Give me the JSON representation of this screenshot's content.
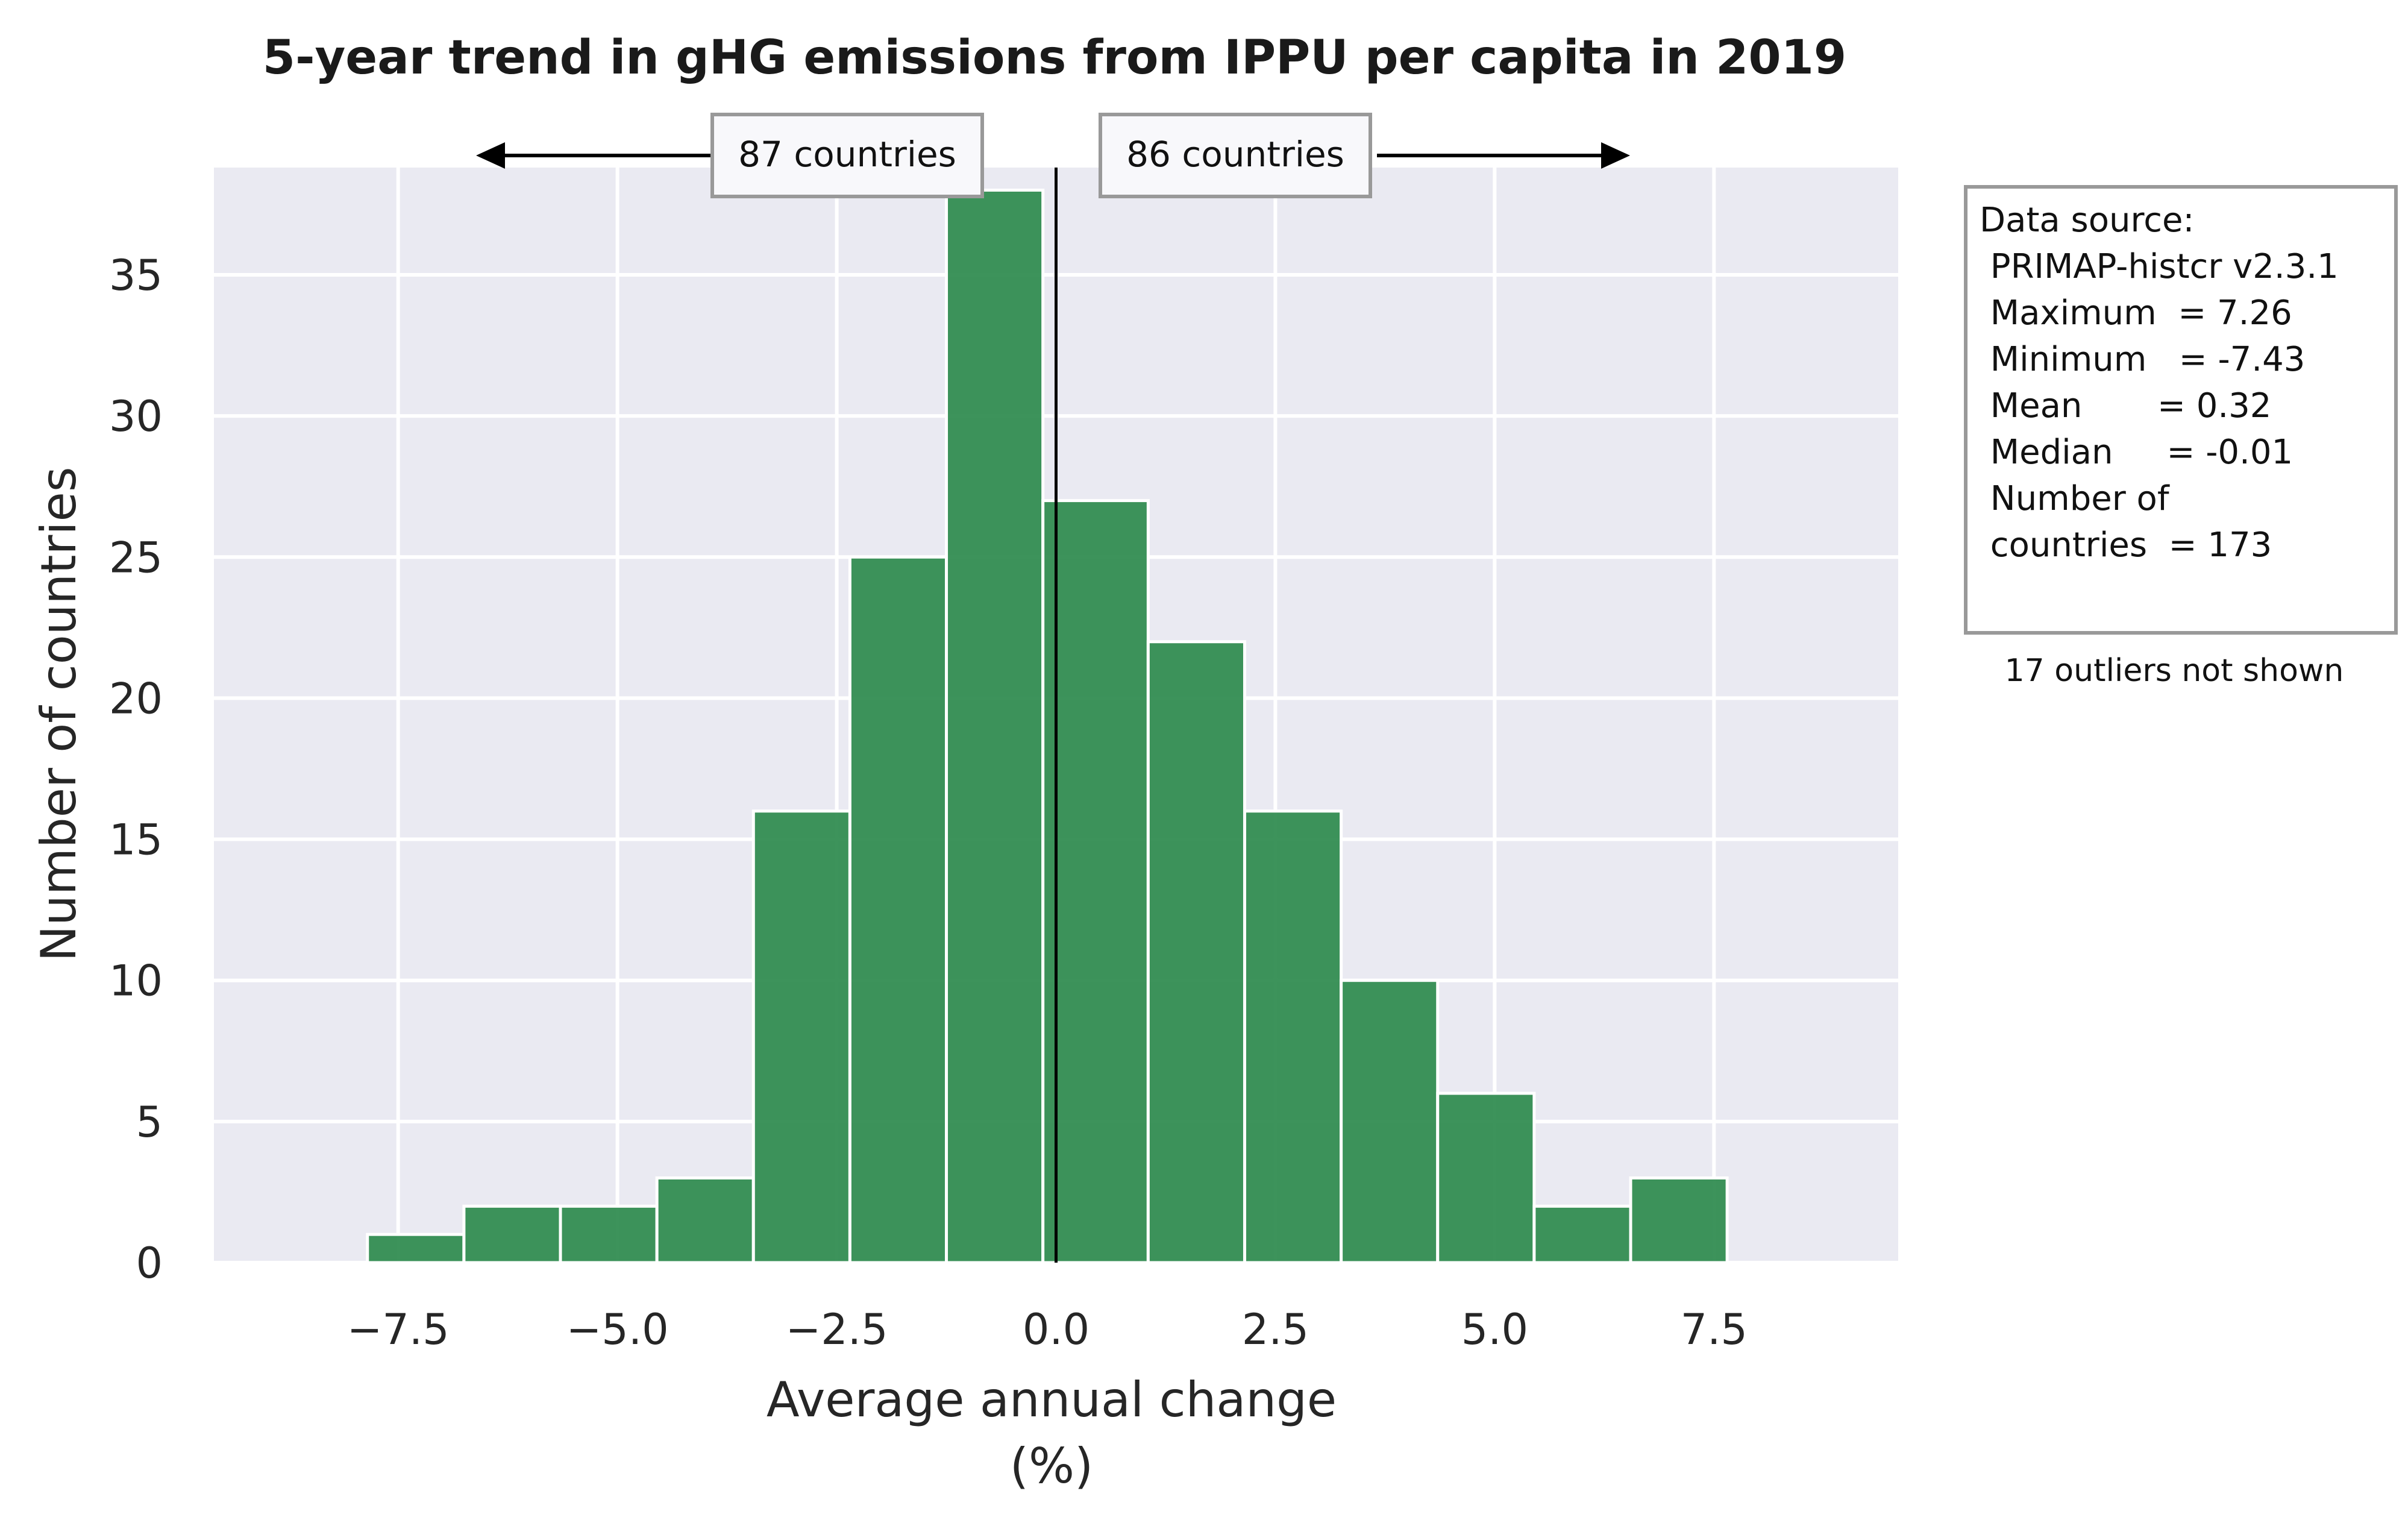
{
  "chart_data": {
    "type": "bar",
    "title": "5-year trend in gHG emissions from IPPU per capita in 2019",
    "xlabel_line1": "Average annual change",
    "xlabel_line2": "(%)",
    "ylabel": "Number of countries",
    "xlim": [
      -9.6,
      9.6
    ],
    "ylim": [
      0,
      38.8
    ],
    "xticks": [
      -7.5,
      -5.0,
      -2.5,
      0.0,
      2.5,
      5.0,
      7.5
    ],
    "xtick_labels": [
      "−7.5",
      "−5.0",
      "−2.5",
      "0.0",
      "2.5",
      "5.0",
      "7.5"
    ],
    "yticks": [
      0,
      5,
      10,
      15,
      20,
      25,
      30,
      35
    ],
    "ytick_labels": [
      "0",
      "5",
      "10",
      "15",
      "20",
      "25",
      "30",
      "35"
    ],
    "bins": [
      {
        "x0": -7.85,
        "x1": -6.75,
        "count": 1
      },
      {
        "x0": -6.75,
        "x1": -5.65,
        "count": 2
      },
      {
        "x0": -5.65,
        "x1": -4.55,
        "count": 2
      },
      {
        "x0": -4.55,
        "x1": -3.45,
        "count": 3
      },
      {
        "x0": -3.45,
        "x1": -2.35,
        "count": 16
      },
      {
        "x0": -2.35,
        "x1": -1.25,
        "count": 25
      },
      {
        "x0": -1.25,
        "x1": -0.15,
        "count": 38
      },
      {
        "x0": -0.15,
        "x1": 1.05,
        "count": 27
      },
      {
        "x0": 1.05,
        "x1": 2.15,
        "count": 22
      },
      {
        "x0": 2.15,
        "x1": 3.25,
        "count": 16
      },
      {
        "x0": 3.25,
        "x1": 4.35,
        "count": 10
      },
      {
        "x0": 4.35,
        "x1": 5.45,
        "count": 6
      },
      {
        "x0": 5.45,
        "x1": 6.55,
        "count": 2
      },
      {
        "x0": 6.55,
        "x1": 7.65,
        "count": 3
      }
    ],
    "zero_line": 0.0,
    "grid": true,
    "colors": {
      "bar": "#2e8b4f",
      "bar_edge": "#ffffff",
      "plot_bg": "#eaeaf2",
      "grid": "#ffffff",
      "zero_line": "#000000"
    }
  },
  "annotations": {
    "left_count_label": "87 countries",
    "right_count_label": "86 countries",
    "stats_box": [
      "Data source:",
      " PRIMAP-histcr v2.3.1",
      "",
      " Maximum  = 7.26",
      " Minimum   = -7.43",
      " Mean       = 0.32",
      " Median     = -0.01",
      " Number of",
      " countries  = 173"
    ],
    "outliers_note": "17 outliers not shown"
  }
}
